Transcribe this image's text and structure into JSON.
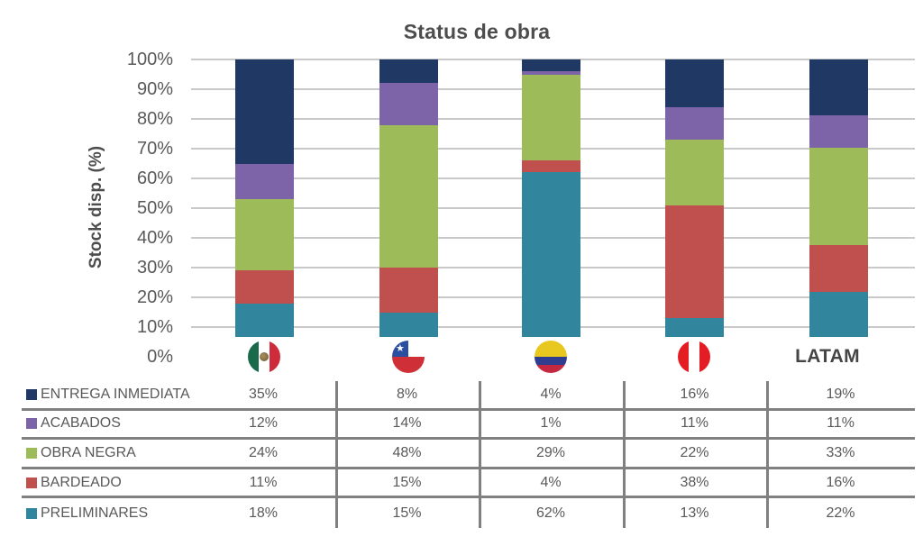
{
  "chart_data": {
    "type": "bar",
    "variant": "stacked-100-percent",
    "title": "Status de obra",
    "ylabel": "Stock disp. (%)",
    "ylim": [
      0,
      100
    ],
    "ytick_labels": [
      "100%",
      "90%",
      "80%",
      "70%",
      "60%",
      "50%",
      "40%",
      "30%",
      "20%",
      "10%",
      "0%"
    ],
    "grid": true,
    "legend_position": "table-rows-bottom-left",
    "categories": [
      {
        "key": "mexico",
        "icon": "mexico-flag-icon",
        "label": ""
      },
      {
        "key": "chile",
        "icon": "chile-flag-icon",
        "label": ""
      },
      {
        "key": "colombia",
        "icon": "colombia-flag-icon",
        "label": ""
      },
      {
        "key": "peru",
        "icon": "peru-flag-icon",
        "label": ""
      },
      {
        "key": "latam",
        "icon": "",
        "label": "LATAM"
      }
    ],
    "series": [
      {
        "name": "ENTREGA INMEDIATA",
        "color": "#1F3864",
        "values": [
          35,
          8,
          4,
          16,
          19
        ]
      },
      {
        "name": "ACABADOS",
        "color": "#7D64A8",
        "values": [
          12,
          14,
          1,
          11,
          11
        ]
      },
      {
        "name": "OBRA NEGRA",
        "color": "#9EBB59",
        "values": [
          24,
          48,
          29,
          22,
          33
        ]
      },
      {
        "name": "BARDEADO",
        "color": "#C0504D",
        "values": [
          11,
          15,
          4,
          38,
          16
        ]
      },
      {
        "name": "PRELIMINARES",
        "color": "#31859C",
        "values": [
          18,
          15,
          62,
          13,
          22
        ]
      }
    ]
  },
  "table": {
    "rows": [
      {
        "label": "ENTREGA INMEDIATA",
        "swatch": "#1F3864",
        "values": [
          "35%",
          "8%",
          "4%",
          "16%",
          "19%"
        ]
      },
      {
        "label": "ACABADOS",
        "swatch": "#7D64A8",
        "values": [
          "12%",
          "14%",
          "1%",
          "11%",
          "11%"
        ]
      },
      {
        "label": "OBRA NEGRA",
        "swatch": "#9EBB59",
        "values": [
          "24%",
          "48%",
          "29%",
          "22%",
          "33%"
        ]
      },
      {
        "label": "BARDEADO",
        "swatch": "#C0504D",
        "values": [
          "11%",
          "15%",
          "4%",
          "38%",
          "16%"
        ]
      },
      {
        "label": "PRELIMINARES",
        "swatch": "#31859C",
        "values": [
          "18%",
          "15%",
          "62%",
          "13%",
          "22%"
        ]
      }
    ]
  },
  "colors": {
    "text": "#595959",
    "title_text": "#4d4d4d",
    "gridline": "#c9c9c9",
    "table_line": "#808080"
  }
}
